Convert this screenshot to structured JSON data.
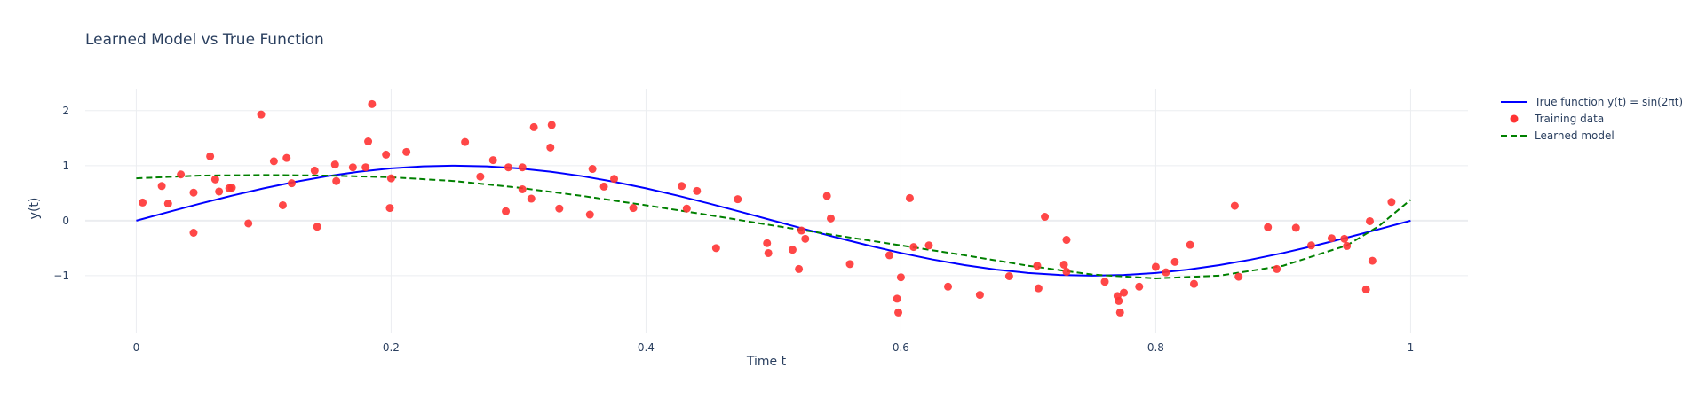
{
  "chart_data": {
    "type": "line",
    "title": "Learned Model vs True Function",
    "xlabel": "Time t",
    "ylabel": "y(t)",
    "xlim": [
      -0.04,
      1.045
    ],
    "ylim": [
      -2.05,
      2.4
    ],
    "x_ticks": [
      0,
      0.2,
      0.4,
      0.6,
      0.8,
      1
    ],
    "x_tick_labels": [
      "0",
      "0.2",
      "0.4",
      "0.6",
      "0.8",
      "1"
    ],
    "y_ticks": [
      -1,
      0,
      1,
      2
    ],
    "y_tick_labels": [
      "−1",
      "0",
      "1",
      "2"
    ],
    "grid": true,
    "legend_position": "top-right",
    "colors": {
      "true_function": "#0000ff",
      "training_data": "#ff3333",
      "learned_model": "#008000",
      "grid": "#ebedf0",
      "text": "#2a3f5f"
    },
    "series": [
      {
        "name": "True function y(t) = sin(2πt)",
        "type": "line",
        "style": "solid",
        "x": [
          0,
          0.025,
          0.05,
          0.075,
          0.1,
          0.125,
          0.15,
          0.175,
          0.2,
          0.225,
          0.25,
          0.275,
          0.3,
          0.325,
          0.35,
          0.375,
          0.4,
          0.425,
          0.45,
          0.475,
          0.5,
          0.525,
          0.55,
          0.575,
          0.6,
          0.625,
          0.65,
          0.675,
          0.7,
          0.725,
          0.75,
          0.775,
          0.8,
          0.825,
          0.85,
          0.875,
          0.9,
          0.925,
          0.95,
          0.975,
          1
        ],
        "y": [
          0,
          0.156,
          0.309,
          0.454,
          0.588,
          0.707,
          0.809,
          0.891,
          0.951,
          0.988,
          1,
          0.988,
          0.951,
          0.891,
          0.809,
          0.707,
          0.588,
          0.454,
          0.309,
          0.156,
          0,
          -0.156,
          -0.309,
          -0.454,
          -0.588,
          -0.707,
          -0.809,
          -0.891,
          -0.951,
          -0.988,
          -1,
          -0.988,
          -0.951,
          -0.891,
          -0.809,
          -0.707,
          -0.588,
          -0.454,
          -0.309,
          -0.156,
          0
        ]
      },
      {
        "name": "Training data",
        "type": "scatter",
        "points": [
          [
            0.005,
            0.33
          ],
          [
            0.02,
            0.63
          ],
          [
            0.025,
            0.31
          ],
          [
            0.035,
            0.84
          ],
          [
            0.045,
            -0.22
          ],
          [
            0.045,
            0.51
          ],
          [
            0.058,
            1.17
          ],
          [
            0.062,
            0.75
          ],
          [
            0.065,
            0.53
          ],
          [
            0.073,
            0.59
          ],
          [
            0.075,
            0.6
          ],
          [
            0.088,
            -0.05
          ],
          [
            0.098,
            1.93
          ],
          [
            0.108,
            1.08
          ],
          [
            0.115,
            0.28
          ],
          [
            0.118,
            1.14
          ],
          [
            0.122,
            0.68
          ],
          [
            0.14,
            0.91
          ],
          [
            0.142,
            -0.11
          ],
          [
            0.156,
            1.02
          ],
          [
            0.157,
            0.72
          ],
          [
            0.17,
            0.97
          ],
          [
            0.18,
            0.97
          ],
          [
            0.182,
            1.44
          ],
          [
            0.185,
            2.12
          ],
          [
            0.196,
            1.2
          ],
          [
            0.199,
            0.23
          ],
          [
            0.2,
            0.77
          ],
          [
            0.212,
            1.25
          ],
          [
            0.258,
            1.43
          ],
          [
            0.27,
            0.8
          ],
          [
            0.28,
            1.1
          ],
          [
            0.29,
            0.17
          ],
          [
            0.292,
            0.97
          ],
          [
            0.303,
            0.97
          ],
          [
            0.303,
            0.57
          ],
          [
            0.31,
            0.4
          ],
          [
            0.312,
            1.7
          ],
          [
            0.325,
            1.33
          ],
          [
            0.326,
            1.74
          ],
          [
            0.332,
            0.22
          ],
          [
            0.356,
            0.11
          ],
          [
            0.358,
            0.94
          ],
          [
            0.367,
            0.62
          ],
          [
            0.375,
            0.76
          ],
          [
            0.39,
            0.23
          ],
          [
            0.428,
            0.63
          ],
          [
            0.432,
            0.22
          ],
          [
            0.44,
            0.54
          ],
          [
            0.455,
            -0.5
          ],
          [
            0.472,
            0.39
          ],
          [
            0.495,
            -0.41
          ],
          [
            0.496,
            -0.59
          ],
          [
            0.515,
            -0.53
          ],
          [
            0.52,
            -0.88
          ],
          [
            0.522,
            -0.18
          ],
          [
            0.525,
            -0.33
          ],
          [
            0.542,
            0.45
          ],
          [
            0.545,
            0.04
          ],
          [
            0.56,
            -0.79
          ],
          [
            0.591,
            -0.63
          ],
          [
            0.597,
            -1.42
          ],
          [
            0.598,
            -1.67
          ],
          [
            0.6,
            -1.03
          ],
          [
            0.607,
            0.41
          ],
          [
            0.61,
            -0.48
          ],
          [
            0.622,
            -0.45
          ],
          [
            0.637,
            -1.2
          ],
          [
            0.662,
            -1.35
          ],
          [
            0.685,
            -1.01
          ],
          [
            0.707,
            -0.82
          ],
          [
            0.708,
            -1.23
          ],
          [
            0.713,
            0.07
          ],
          [
            0.728,
            -0.8
          ],
          [
            0.73,
            -0.35
          ],
          [
            0.73,
            -0.93
          ],
          [
            0.76,
            -1.11
          ],
          [
            0.77,
            -1.37
          ],
          [
            0.771,
            -1.46
          ],
          [
            0.772,
            -1.67
          ],
          [
            0.775,
            -1.31
          ],
          [
            0.787,
            -1.2
          ],
          [
            0.8,
            -0.84
          ],
          [
            0.808,
            -0.94
          ],
          [
            0.815,
            -0.75
          ],
          [
            0.827,
            -0.44
          ],
          [
            0.83,
            -1.15
          ],
          [
            0.862,
            0.27
          ],
          [
            0.865,
            -1.02
          ],
          [
            0.888,
            -0.12
          ],
          [
            0.895,
            -0.88
          ],
          [
            0.91,
            -0.13
          ],
          [
            0.922,
            -0.45
          ],
          [
            0.938,
            -0.32
          ],
          [
            0.948,
            -0.33
          ],
          [
            0.95,
            -0.46
          ],
          [
            0.965,
            -1.25
          ],
          [
            0.968,
            -0.01
          ],
          [
            0.97,
            -0.73
          ],
          [
            0.985,
            0.34
          ]
        ]
      },
      {
        "name": "Learned model",
        "type": "line",
        "style": "dashed",
        "x": [
          0,
          0.05,
          0.1,
          0.15,
          0.2,
          0.25,
          0.3,
          0.35,
          0.4,
          0.45,
          0.5,
          0.55,
          0.6,
          0.65,
          0.7,
          0.75,
          0.8,
          0.85,
          0.9,
          0.95,
          0.975,
          1
        ],
        "y": [
          0.77,
          0.82,
          0.83,
          0.82,
          0.79,
          0.72,
          0.6,
          0.45,
          0.28,
          0.1,
          -0.09,
          -0.27,
          -0.45,
          -0.63,
          -0.82,
          -0.98,
          -1.05,
          -1.0,
          -0.82,
          -0.45,
          -0.1,
          0.38
        ]
      }
    ]
  }
}
